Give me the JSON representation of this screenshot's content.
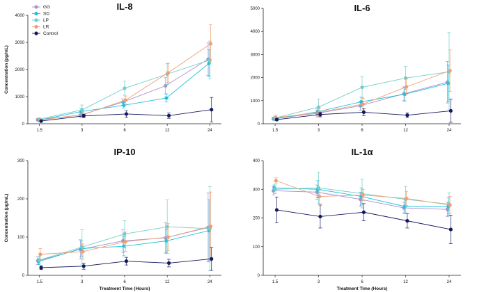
{
  "colors": {
    "GG": "#a992cf",
    "SD": "#1ec3df",
    "LP": "#6fcfc8",
    "LR": "#ef9f74",
    "Control": "#15175f"
  },
  "legend": [
    "GG",
    "SD",
    "LP",
    "LR",
    "Control"
  ],
  "chart_data": [
    {
      "id": "il8",
      "type": "line",
      "title": "IL-8",
      "ylabel": "Concentration (pg/mL)",
      "xlabel": "",
      "categories": [
        "1.5",
        "3",
        "6",
        "12",
        "24"
      ],
      "ylim": [
        0,
        4000
      ],
      "yticks": [
        "0",
        "1000",
        "2000",
        "3000",
        "4000"
      ],
      "ytick_values": [
        0,
        1000,
        2000,
        3000,
        4000
      ],
      "series": [
        {
          "name": "GG",
          "values": [
            150,
            320,
            800,
            1400,
            2380
          ],
          "err": [
            40,
            100,
            120,
            300,
            600
          ]
        },
        {
          "name": "SD",
          "values": [
            130,
            450,
            680,
            950,
            2230
          ],
          "err": [
            30,
            120,
            100,
            150,
            500
          ]
        },
        {
          "name": "LP",
          "values": [
            170,
            510,
            1310,
            1830,
            2350
          ],
          "err": [
            40,
            180,
            260,
            380,
            700
          ]
        },
        {
          "name": "LR",
          "values": [
            140,
            330,
            870,
            1880,
            2950
          ],
          "err": [
            30,
            100,
            150,
            350,
            700
          ]
        },
        {
          "name": "Control",
          "values": [
            100,
            290,
            360,
            300,
            520
          ],
          "err": [
            20,
            60,
            120,
            100,
            450
          ]
        }
      ]
    },
    {
      "id": "il6",
      "type": "line",
      "title": "IL-6",
      "ylabel": "",
      "xlabel": "",
      "categories": [
        "1.5",
        "3",
        "6",
        "12",
        "24"
      ],
      "ylim": [
        0,
        5000
      ],
      "yticks": [
        "0",
        "1000",
        "2000",
        "3000",
        "4000",
        "5000"
      ],
      "ytick_values": [
        0,
        1000,
        2000,
        3000,
        4000,
        5000
      ],
      "series": [
        {
          "name": "GG",
          "values": [
            220,
            450,
            780,
            1300,
            1800
          ],
          "err": [
            60,
            150,
            200,
            300,
            900
          ]
        },
        {
          "name": "SD",
          "values": [
            200,
            520,
            950,
            1280,
            1750
          ],
          "err": [
            50,
            150,
            200,
            300,
            800
          ]
        },
        {
          "name": "LP",
          "values": [
            250,
            720,
            1580,
            1980,
            2250
          ],
          "err": [
            80,
            350,
            450,
            500,
            1700
          ]
        },
        {
          "name": "LR",
          "values": [
            260,
            500,
            850,
            1600,
            2300
          ],
          "err": [
            120,
            180,
            250,
            350,
            900
          ]
        },
        {
          "name": "Control",
          "values": [
            180,
            400,
            500,
            370,
            560
          ],
          "err": [
            40,
            100,
            150,
            100,
            500
          ]
        }
      ]
    },
    {
      "id": "ip10",
      "type": "line",
      "title": "IP-10",
      "ylabel": "Concentration (pg/mL)",
      "xlabel": "Treatment Time (Hours)",
      "categories": [
        "1.5",
        "3",
        "6",
        "12",
        "24"
      ],
      "ylim": [
        0,
        300
      ],
      "yticks": [
        "0",
        "100",
        "200",
        "300"
      ],
      "ytick_values": [
        0,
        100,
        200,
        300
      ],
      "series": [
        {
          "name": "GG",
          "values": [
            38,
            68,
            90,
            98,
            125
          ],
          "err": [
            10,
            25,
            30,
            40,
            90
          ]
        },
        {
          "name": "SD",
          "values": [
            36,
            70,
            76,
            90,
            117
          ],
          "err": [
            8,
            20,
            25,
            30,
            80
          ]
        },
        {
          "name": "LP",
          "values": [
            40,
            74,
            108,
            127,
            122
          ],
          "err": [
            10,
            45,
            35,
            70,
            110
          ]
        },
        {
          "name": "LR",
          "values": [
            55,
            62,
            88,
            100,
            128
          ],
          "err": [
            15,
            20,
            25,
            35,
            90
          ]
        },
        {
          "name": "Control",
          "values": [
            20,
            24,
            37,
            32,
            43
          ],
          "err": [
            5,
            8,
            10,
            10,
            30
          ]
        }
      ]
    },
    {
      "id": "il1a",
      "type": "line",
      "title": "IL-1α",
      "ylabel": "",
      "xlabel": "Treatment Time (Hours)",
      "categories": [
        "1.5",
        "3",
        "6",
        "12",
        "24"
      ],
      "ylim": [
        0,
        400
      ],
      "yticks": [
        "0",
        "100",
        "200",
        "300",
        "400"
      ],
      "ytick_values": [
        0,
        100,
        200,
        300,
        400
      ],
      "series": [
        {
          "name": "GG",
          "values": [
            295,
            290,
            265,
            235,
            230
          ],
          "err": [
            15,
            25,
            25,
            20,
            25
          ]
        },
        {
          "name": "SD",
          "values": [
            305,
            300,
            275,
            240,
            240
          ],
          "err": [
            10,
            30,
            30,
            25,
            30
          ]
        },
        {
          "name": "LP",
          "values": [
            300,
            305,
            285,
            265,
            248
          ],
          "err": [
            15,
            55,
            50,
            45,
            40
          ]
        },
        {
          "name": "LR",
          "values": [
            330,
            275,
            280,
            268,
            245
          ],
          "err": [
            10,
            25,
            20,
            25,
            30
          ]
        },
        {
          "name": "Control",
          "values": [
            228,
            205,
            220,
            190,
            160
          ],
          "err": [
            45,
            40,
            30,
            25,
            50
          ]
        }
      ]
    }
  ]
}
